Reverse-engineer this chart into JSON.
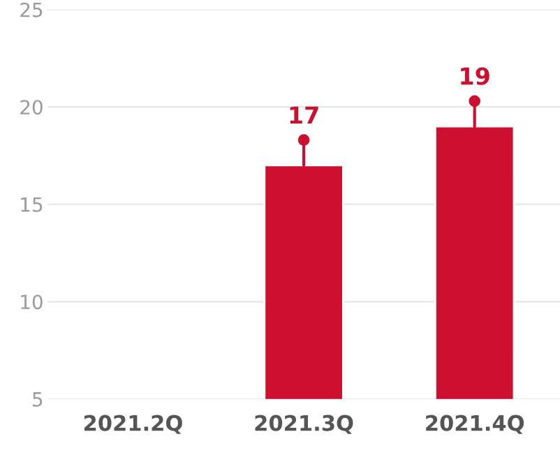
{
  "chart_data": {
    "type": "bar",
    "categories": [
      "2021.2Q",
      "2021.3Q",
      "2021.4Q"
    ],
    "values": [
      null,
      17,
      19
    ],
    "color": "#ce1030",
    "ylim": [
      5,
      25
    ],
    "yticks": [
      5,
      10,
      15,
      20,
      25
    ],
    "grid": "y",
    "data_labels": true
  }
}
